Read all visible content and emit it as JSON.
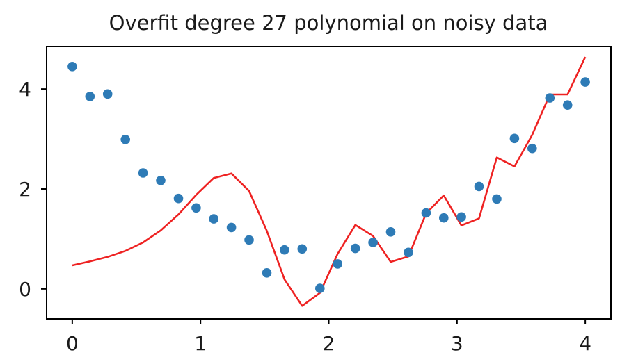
{
  "chart_data": {
    "type": "scatter",
    "title": "Overfit degree 27 polynomial on noisy data",
    "xlabel": "",
    "ylabel": "",
    "xlim": [
      -0.2,
      4.2
    ],
    "ylim": [
      -0.6,
      4.85
    ],
    "xticks": [
      0,
      1,
      2,
      3,
      4
    ],
    "yticks": [
      0,
      2,
      4
    ],
    "grid": false,
    "legend": "none",
    "series": [
      {
        "kind": "scatter",
        "color": "#2e7bb6",
        "x": [
          0.0,
          0.138,
          0.276,
          0.414,
          0.552,
          0.69,
          0.828,
          0.966,
          1.103,
          1.241,
          1.379,
          1.517,
          1.655,
          1.793,
          1.931,
          2.069,
          2.207,
          2.345,
          2.483,
          2.621,
          2.759,
          2.897,
          3.034,
          3.172,
          3.31,
          3.448,
          3.586,
          3.724,
          3.862,
          4.0
        ],
        "y": [
          4.45,
          3.85,
          3.9,
          2.99,
          2.32,
          2.17,
          1.81,
          1.62,
          1.4,
          1.23,
          0.98,
          0.32,
          0.78,
          0.8,
          0.01,
          0.5,
          0.81,
          0.93,
          1.14,
          0.73,
          1.52,
          1.42,
          1.44,
          2.05,
          1.8,
          3.01,
          2.81,
          3.82,
          3.68,
          4.14
        ]
      },
      {
        "kind": "line",
        "color": "#ee2222",
        "x": [
          0.0,
          0.138,
          0.276,
          0.414,
          0.552,
          0.69,
          0.828,
          0.966,
          1.103,
          1.241,
          1.379,
          1.517,
          1.655,
          1.793,
          1.931,
          2.069,
          2.207,
          2.345,
          2.483,
          2.621,
          2.759,
          2.897,
          3.034,
          3.172,
          3.31,
          3.448,
          3.586,
          3.724,
          3.862,
          4.0
        ],
        "y": [
          0.47,
          0.55,
          0.64,
          0.76,
          0.93,
          1.17,
          1.49,
          1.88,
          2.22,
          2.31,
          1.96,
          1.16,
          0.19,
          -0.34,
          -0.08,
          0.7,
          1.28,
          1.06,
          0.54,
          0.65,
          1.51,
          1.87,
          1.27,
          1.41,
          2.63,
          2.45,
          3.08,
          3.89,
          3.89,
          4.64
        ]
      }
    ]
  }
}
